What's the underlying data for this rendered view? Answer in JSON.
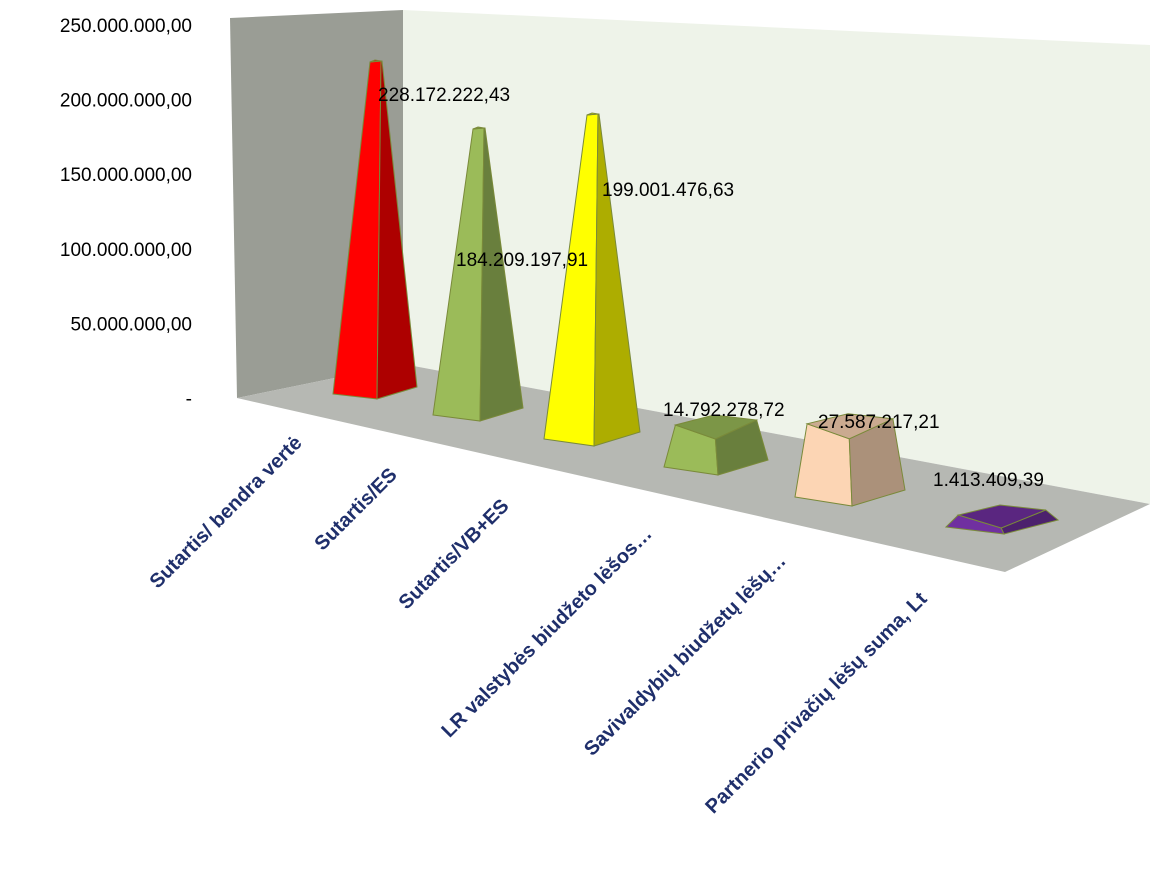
{
  "chart_data": {
    "type": "bar",
    "style": "3d-pyramid",
    "categories": [
      "Sutartis/ bendra vertė",
      "Sutartis/ES",
      "Sutartis/VB+ES",
      "LR valstybės biudžeto lėšos…",
      "Savivaldybių biudžetų lėšų…",
      "Partnerio privačių lėšų suma, Lt"
    ],
    "values": [
      228172222.43,
      184209197.91,
      199001476.63,
      14792278.72,
      27587217.21,
      1413409.39
    ],
    "value_labels": [
      "228.172.222,43",
      "184.209.197,91",
      "199.001.476,63",
      "14.792.278,72",
      "27.587.217,21",
      "1.413.409,39"
    ],
    "bar_colors": [
      "#ff0000",
      "#9bbb59",
      "#ffff00",
      "#9bbb59",
      "#fcd5b4",
      "#7030a0"
    ],
    "ylim": [
      0,
      250000000
    ],
    "yticks": [
      0,
      50000000,
      100000000,
      150000000,
      200000000,
      250000000
    ],
    "ytick_labels": [
      "-",
      "50.000.000,00",
      "100.000.000,00",
      "150.000.000,00",
      "200.000.000,00",
      "250.000.000,00"
    ],
    "xlabel": "",
    "ylabel": "",
    "grid": false,
    "legend": "none",
    "colors": {
      "back_wall": "#eef3e9",
      "side_wall": "#9a9d95",
      "floor": "#b6b8b3",
      "axis_label": "#1f2f6b"
    }
  }
}
